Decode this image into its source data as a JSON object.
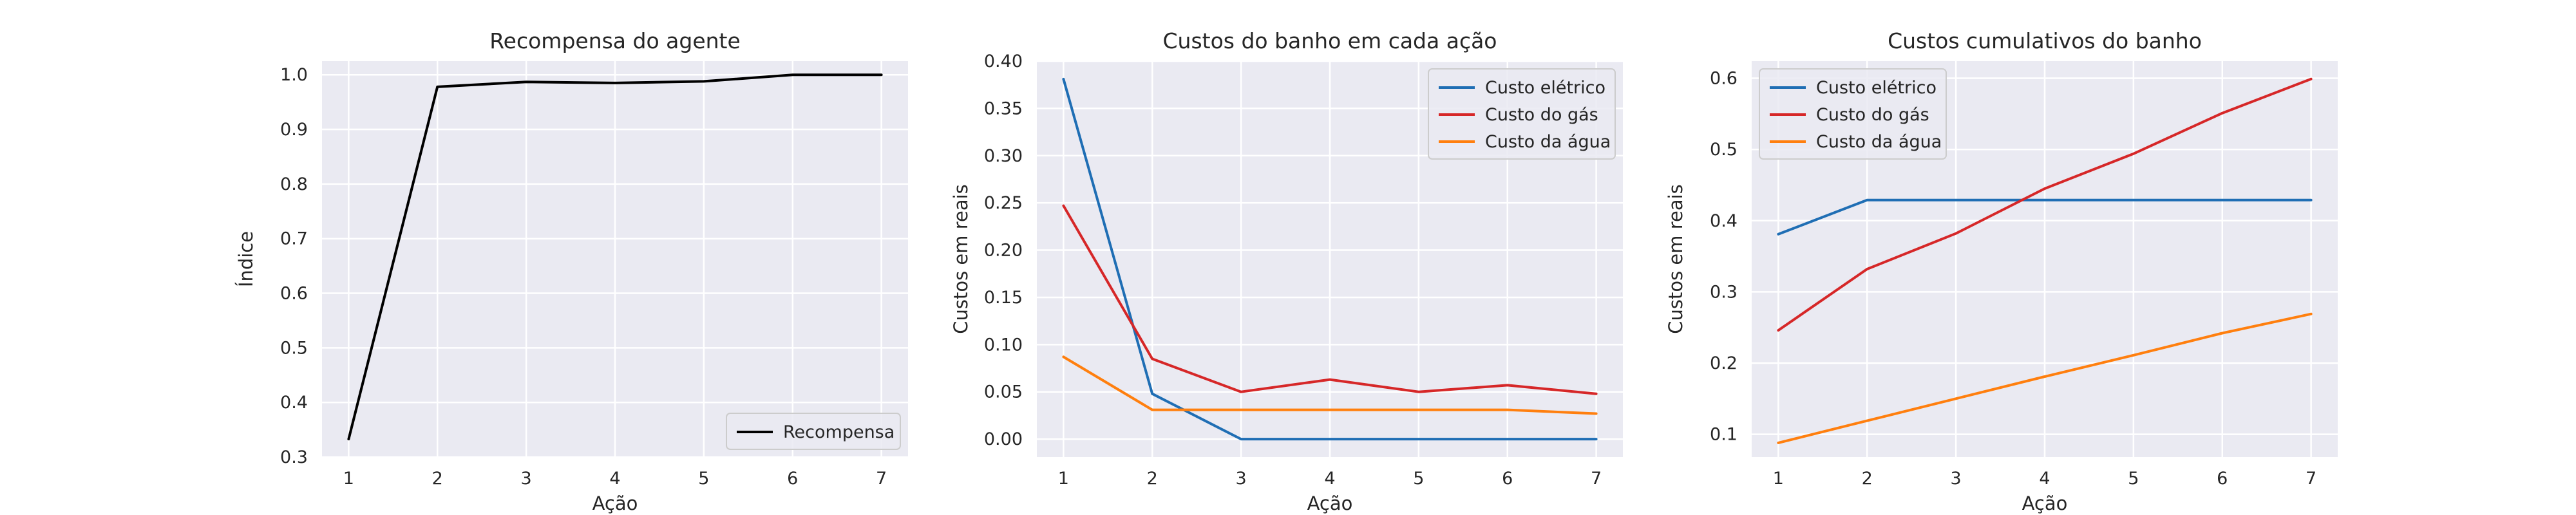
{
  "chart_data": [
    {
      "type": "line",
      "title": "Recompensa do agente",
      "xlabel": "Ação",
      "ylabel": "Índice",
      "x": [
        1,
        2,
        3,
        4,
        5,
        6,
        7
      ],
      "xlim": [
        0.7,
        7.3
      ],
      "ylim": [
        0.3,
        1.025
      ],
      "yticks": [
        0.3,
        0.4,
        0.5,
        0.6,
        0.7,
        0.8,
        0.9,
        1.0
      ],
      "ytick_decimals": 1,
      "grid": true,
      "legend": "lower-right",
      "series": [
        {
          "name": "Recompensa",
          "color": "#000000",
          "values": [
            0.333,
            0.978,
            0.987,
            0.985,
            0.988,
            1.0,
            1.0
          ]
        }
      ]
    },
    {
      "type": "line",
      "title": "Custos do banho em cada ação",
      "xlabel": "Ação",
      "ylabel": "Custos em reais",
      "x": [
        1,
        2,
        3,
        4,
        5,
        6,
        7
      ],
      "xlim": [
        0.7,
        7.3
      ],
      "ylim": [
        -0.019,
        0.4
      ],
      "yticks": [
        0.0,
        0.05,
        0.1,
        0.15,
        0.2,
        0.25,
        0.3,
        0.35,
        0.4
      ],
      "ytick_decimals": 2,
      "grid": true,
      "legend": "upper-right",
      "series": [
        {
          "name": "Custo elétrico",
          "color": "#1f6eb4",
          "values": [
            0.381,
            0.048,
            0.0,
            0.0,
            0.0,
            0.0,
            0.0
          ]
        },
        {
          "name": "Custo do gás",
          "color": "#d62728",
          "values": [
            0.247,
            0.085,
            0.05,
            0.063,
            0.05,
            0.057,
            0.048
          ]
        },
        {
          "name": "Custo da água",
          "color": "#ff7f0e",
          "values": [
            0.087,
            0.031,
            0.031,
            0.031,
            0.031,
            0.031,
            0.027
          ]
        }
      ]
    },
    {
      "type": "line",
      "title": "Custos cumulativos do banho",
      "xlabel": "Ação",
      "ylabel": "Custos em reais",
      "x": [
        1,
        2,
        3,
        4,
        5,
        6,
        7
      ],
      "xlim": [
        0.7,
        7.3
      ],
      "ylim": [
        0.068,
        0.624
      ],
      "yticks": [
        0.1,
        0.2,
        0.3,
        0.4,
        0.5,
        0.6
      ],
      "ytick_decimals": 1,
      "grid": true,
      "legend": "upper-left",
      "series": [
        {
          "name": "Custo elétrico",
          "color": "#1f6eb4",
          "values": [
            0.381,
            0.429,
            0.429,
            0.429,
            0.429,
            0.429,
            0.429
          ]
        },
        {
          "name": "Custo do gás",
          "color": "#d62728",
          "values": [
            0.246,
            0.332,
            0.382,
            0.445,
            0.494,
            0.551,
            0.599
          ]
        },
        {
          "name": "Custo da água",
          "color": "#ff7f0e",
          "values": [
            0.088,
            0.119,
            0.15,
            0.181,
            0.211,
            0.242,
            0.269
          ]
        }
      ]
    }
  ]
}
